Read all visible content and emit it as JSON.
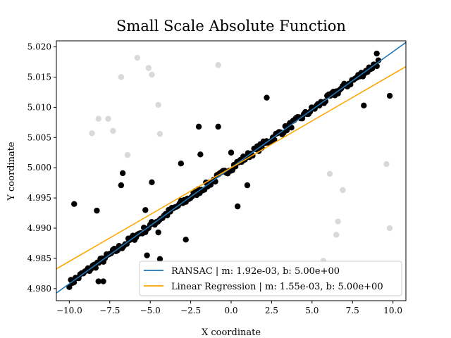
{
  "chart_data": {
    "type": "scatter",
    "title": "Small Scale Absolute Function",
    "xlabel": "X coordinate",
    "ylabel": "Y coordinate",
    "xlim": [
      -10.8,
      10.8
    ],
    "ylim": [
      4.978,
      5.021
    ],
    "xticks": [
      -10.0,
      -7.5,
      -5.0,
      -2.5,
      0.0,
      2.5,
      5.0,
      7.5,
      10.0
    ],
    "xtick_labels": [
      "−10.0",
      "−7.5",
      "−5.0",
      "−2.5",
      "0.0",
      "2.5",
      "5.0",
      "7.5",
      "10.0"
    ],
    "yticks": [
      4.98,
      4.985,
      4.99,
      4.995,
      5.0,
      5.005,
      5.01,
      5.015,
      5.02
    ],
    "ytick_labels": [
      "4.980",
      "4.985",
      "4.990",
      "4.995",
      "5.000",
      "5.005",
      "5.010",
      "5.015",
      "5.020"
    ],
    "grid": false,
    "legend_position": "lower-right",
    "lines": [
      {
        "name": "RANSAC | m: 1.92e-03, b: 5.00e+00",
        "slope": 0.00192,
        "intercept": 5.0,
        "color": "#1f77b4"
      },
      {
        "name": "Linear Regression | m: 1.55e-03, b: 5.00e+00",
        "slope": 0.00155,
        "intercept": 5.0,
        "color": "#ffa500"
      }
    ],
    "inlier_color": "#000000",
    "outlier_color": "#d9d9d9",
    "inlier_trend": {
      "slope": 0.00192,
      "intercept": 5.0,
      "x_start": -10.0,
      "x_end": 9.1,
      "count": 200
    },
    "inliers_extra": [
      [
        -9.7,
        4.994
      ],
      [
        -8.3,
        4.9929
      ],
      [
        -8.2,
        4.9812
      ],
      [
        -7.9,
        4.9812
      ],
      [
        -6.7,
        4.9991
      ],
      [
        -6.8,
        4.9971
      ],
      [
        -5.3,
        4.993
      ],
      [
        -5.2,
        4.9855
      ],
      [
        -4.9,
        4.9976
      ],
      [
        -4.5,
        4.9893
      ],
      [
        -4.4,
        4.9849
      ],
      [
        -3.1,
        5.0007
      ],
      [
        -2.8,
        4.9881
      ],
      [
        -2.0,
        5.0068
      ],
      [
        -1.9,
        5.0022
      ],
      [
        -0.8,
        5.0068
      ],
      [
        0.0,
        5.0025
      ],
      [
        0.4,
        4.9936
      ],
      [
        1.0,
        4.9971
      ],
      [
        2.2,
        5.0116
      ],
      [
        8.2,
        5.0103
      ],
      [
        9.8,
        5.0119
      ],
      [
        9.0,
        5.0189
      ]
    ],
    "outliers": [
      [
        -8.6,
        5.0057
      ],
      [
        -8.2,
        5.0081
      ],
      [
        -7.6,
        5.0081
      ],
      [
        -7.3,
        5.0061
      ],
      [
        -6.4,
        5.0021
      ],
      [
        -6.8,
        5.015
      ],
      [
        -5.8,
        5.0182
      ],
      [
        -5.1,
        5.0165
      ],
      [
        -4.9,
        5.0154
      ],
      [
        -4.5,
        5.0104
      ],
      [
        -4.4,
        5.0056
      ],
      [
        -0.8,
        5.017
      ],
      [
        6.1,
        4.999
      ],
      [
        6.6,
        4.9911
      ],
      [
        6.5,
        4.9889
      ],
      [
        6.9,
        4.9963
      ],
      [
        5.7,
        4.9846
      ],
      [
        9.6,
        5.0006
      ],
      [
        9.8,
        4.99
      ]
    ]
  }
}
